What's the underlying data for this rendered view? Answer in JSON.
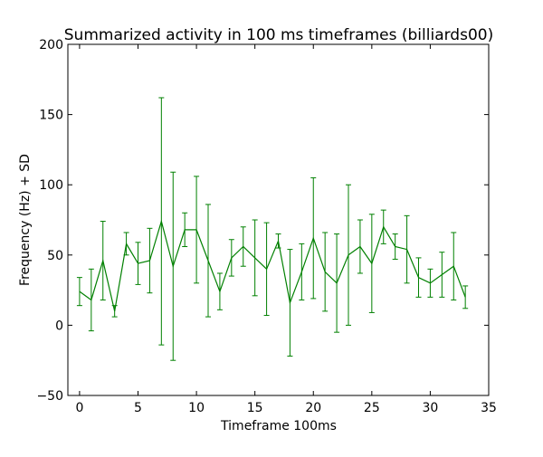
{
  "chart_data": {
    "type": "line",
    "title": "Summarized activity in 100 ms timeframes (billiards00)",
    "xlabel": "Timeframe 100ms",
    "ylabel": "Frequency (Hz) + SD",
    "xlim": [
      -1,
      35
    ],
    "ylim": [
      -50,
      200
    ],
    "xticks": [
      0,
      5,
      10,
      15,
      20,
      25,
      30,
      35
    ],
    "yticks": [
      -50,
      0,
      50,
      100,
      150,
      200
    ],
    "xtick_labels": [
      "0",
      "5",
      "10",
      "15",
      "20",
      "25",
      "30",
      "35"
    ],
    "ytick_labels": [
      "−50",
      "0",
      "50",
      "100",
      "150",
      "200"
    ],
    "grid": false,
    "series": [
      {
        "name": "billiards00",
        "color": "#008000",
        "x": [
          0,
          1,
          2,
          3,
          4,
          5,
          6,
          7,
          8,
          9,
          10,
          11,
          12,
          13,
          14,
          15,
          16,
          17,
          18,
          19,
          20,
          21,
          22,
          23,
          24,
          25,
          26,
          27,
          28,
          29,
          30,
          31,
          32,
          33
        ],
        "y": [
          24,
          18,
          46,
          10,
          58,
          44,
          46,
          74,
          42,
          68,
          68,
          46,
          24,
          48,
          56,
          48,
          40,
          60,
          16,
          38,
          62,
          38,
          30,
          50,
          56,
          44,
          70,
          56,
          54,
          34,
          30,
          36,
          42,
          20
        ],
        "sd": [
          10,
          22,
          28,
          4,
          8,
          15,
          23,
          88,
          67,
          12,
          38,
          40,
          13,
          13,
          14,
          27,
          33,
          5,
          38,
          20,
          43,
          28,
          35,
          50,
          19,
          35,
          12,
          9,
          24,
          14,
          10,
          16,
          24,
          8
        ]
      }
    ]
  }
}
